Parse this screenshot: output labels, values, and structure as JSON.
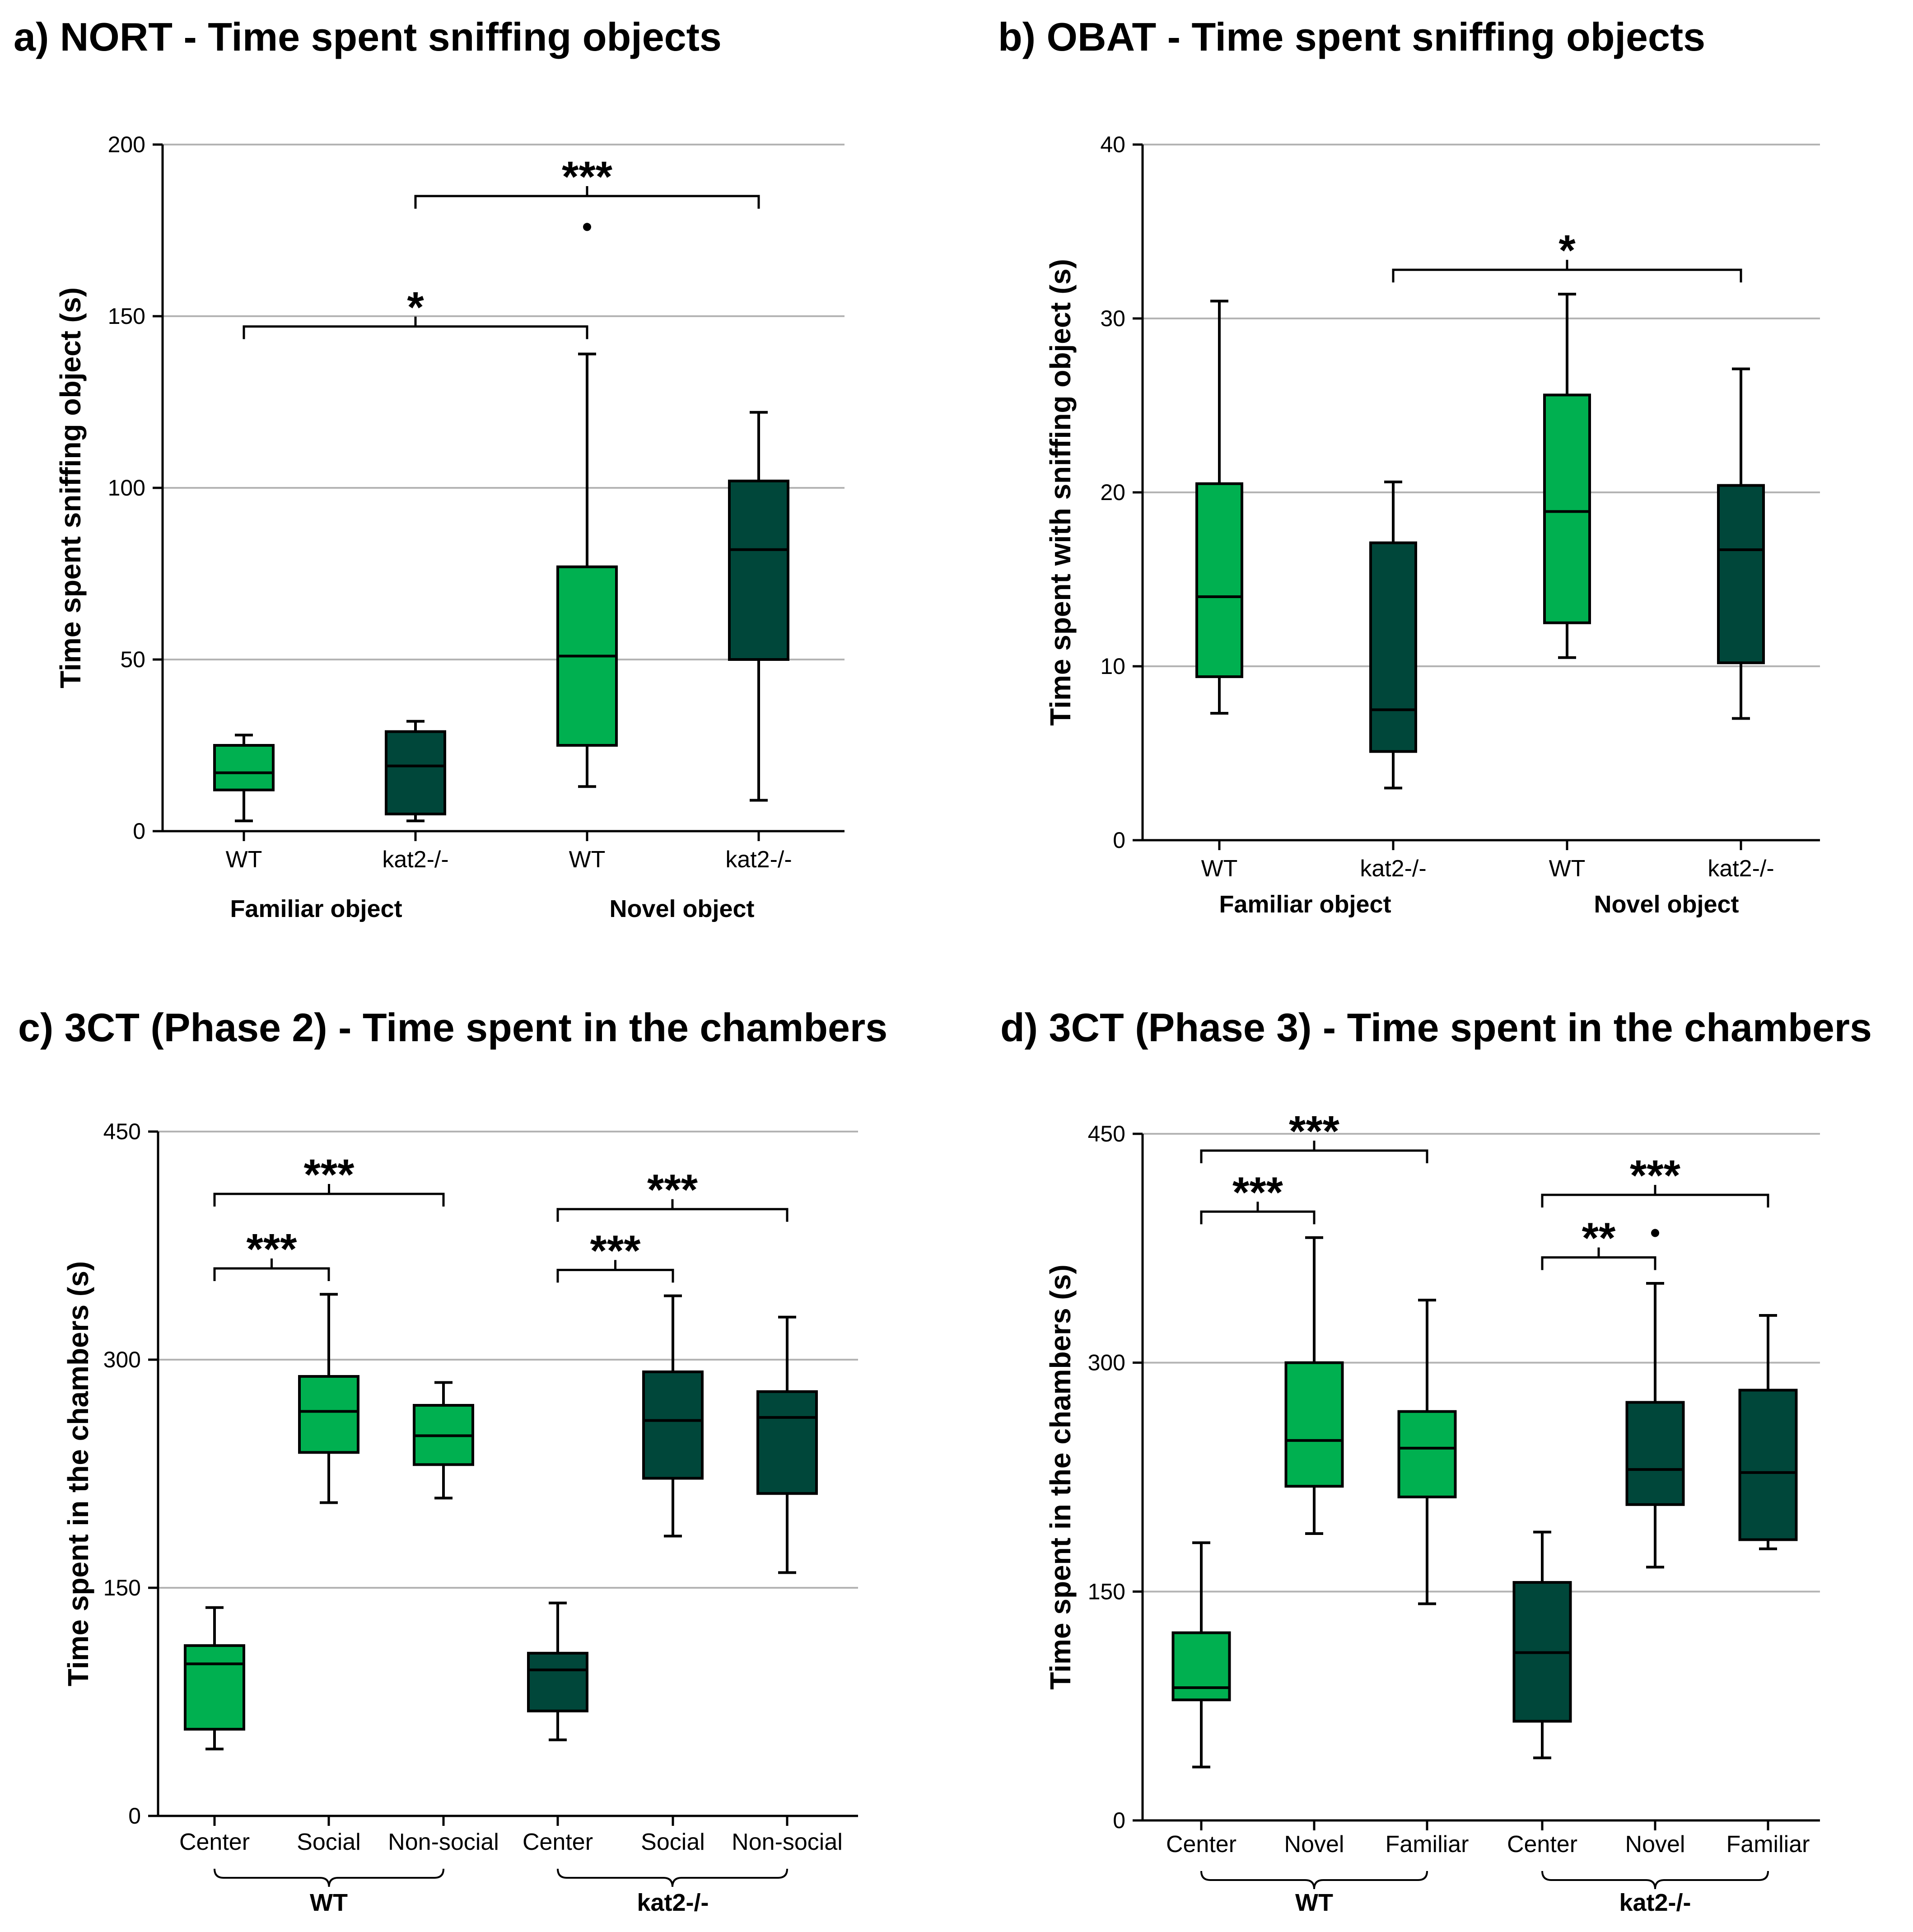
{
  "colors": {
    "wt": "#00b050",
    "kat2": "#00473a",
    "grid": "#b4b4b4",
    "ink": "#000000"
  },
  "chart_data": [
    {
      "id": "a",
      "type": "box",
      "title": "a) NORT - Time spent sniffing objects",
      "ylabel": "Time spent sniffing object (s)",
      "ylim": [
        0,
        200
      ],
      "yticks": [
        "0",
        "50",
        "100",
        "150",
        "200"
      ],
      "ytick_values": [
        0,
        50,
        100,
        150,
        200
      ],
      "grid": "horizontal",
      "categories": [
        "WT",
        "kat2-/-",
        "WT",
        "kat2-/-"
      ],
      "groups": [
        {
          "label": "Familiar object",
          "from": 0,
          "to": 1
        },
        {
          "label": "Novel object",
          "from": 2,
          "to": 3
        }
      ],
      "boxes": [
        {
          "series": "wt",
          "min": 3,
          "q1": 12,
          "median": 17,
          "q3": 25,
          "max": 28,
          "outliers": []
        },
        {
          "series": "kat2",
          "min": 3,
          "q1": 5,
          "median": 19,
          "q3": 29,
          "max": 32,
          "outliers": []
        },
        {
          "series": "wt",
          "min": 13,
          "q1": 25,
          "median": 51,
          "q3": 77,
          "max": 139,
          "outliers": [
            176
          ]
        },
        {
          "series": "kat2",
          "min": 9,
          "q1": 50,
          "median": 82,
          "q3": 102,
          "max": 122,
          "outliers": []
        }
      ],
      "significance": [
        {
          "from": 0,
          "to": 2,
          "y": 147,
          "label": "*"
        },
        {
          "from": 1,
          "to": 3,
          "y": 185,
          "label": "***"
        }
      ]
    },
    {
      "id": "b",
      "type": "box",
      "title": "b) OBAT - Time spent sniffing objects",
      "ylabel": "Time spent with sniffing object (s)",
      "ylim": [
        0,
        40
      ],
      "yticks": [
        "0",
        "10",
        "20",
        "30",
        "40"
      ],
      "ytick_values": [
        0,
        10,
        20,
        30,
        40
      ],
      "grid": "horizontal",
      "categories": [
        "WT",
        "kat2-/-",
        "WT",
        "kat2-/-"
      ],
      "groups": [
        {
          "label": "Familiar object",
          "from": 0,
          "to": 1
        },
        {
          "label": "Novel object",
          "from": 2,
          "to": 3
        }
      ],
      "boxes": [
        {
          "series": "wt",
          "min": 7.3,
          "q1": 9.4,
          "median": 14,
          "q3": 20.5,
          "max": 31,
          "outliers": []
        },
        {
          "series": "kat2",
          "min": 3,
          "q1": 5.1,
          "median": 7.5,
          "q3": 17.1,
          "max": 20.6,
          "outliers": []
        },
        {
          "series": "wt",
          "min": 10.5,
          "q1": 12.5,
          "median": 18.9,
          "q3": 25.6,
          "max": 31.4,
          "outliers": []
        },
        {
          "series": "kat2",
          "min": 7,
          "q1": 10.2,
          "median": 16.7,
          "q3": 20.4,
          "max": 27.1,
          "outliers": []
        }
      ],
      "significance": [
        {
          "from": 1,
          "to": 3,
          "y": 32.8,
          "label": "*"
        }
      ]
    },
    {
      "id": "c",
      "type": "box",
      "title": "c) 3CT (Phase 2) - Time spent in the chambers",
      "ylabel": "Time spent in the chambers (s)",
      "ylim": [
        0,
        450
      ],
      "yticks": [
        "0",
        "150",
        "300",
        "450"
      ],
      "ytick_values": [
        0,
        150,
        300,
        450
      ],
      "grid": "horizontal",
      "categories": [
        "Center",
        "Social",
        "Non-social",
        "Center",
        "Social",
        "Non-social"
      ],
      "groups": [
        {
          "label": "WT",
          "from": 0,
          "to": 2
        },
        {
          "label": "kat2-/-",
          "from": 3,
          "to": 5
        }
      ],
      "boxes": [
        {
          "series": "wt",
          "min": 44,
          "q1": 57,
          "median": 100,
          "q3": 112,
          "max": 137,
          "outliers": []
        },
        {
          "series": "wt",
          "min": 206,
          "q1": 239,
          "median": 266,
          "q3": 289,
          "max": 343,
          "outliers": []
        },
        {
          "series": "wt",
          "min": 209,
          "q1": 231,
          "median": 250,
          "q3": 270,
          "max": 285,
          "outliers": []
        },
        {
          "series": "kat2",
          "min": 50,
          "q1": 69,
          "median": 96,
          "q3": 107,
          "max": 140,
          "outliers": []
        },
        {
          "series": "kat2",
          "min": 184,
          "q1": 222,
          "median": 260,
          "q3": 292,
          "max": 342,
          "outliers": []
        },
        {
          "series": "kat2",
          "min": 160,
          "q1": 212,
          "median": 262,
          "q3": 279,
          "max": 328,
          "outliers": []
        }
      ],
      "significance": [
        {
          "from": 0,
          "to": 1,
          "y": 360,
          "label": "***"
        },
        {
          "from": 0,
          "to": 2,
          "y": 409,
          "label": "***"
        },
        {
          "from": 3,
          "to": 4,
          "y": 359,
          "label": "***"
        },
        {
          "from": 3,
          "to": 5,
          "y": 399,
          "label": "***"
        }
      ]
    },
    {
      "id": "d",
      "type": "box",
      "title": "d) 3CT (Phase 3) - Time spent in the chambers",
      "ylabel": "Time spent in the chambers (s)",
      "ylim": [
        0,
        450
      ],
      "yticks": [
        "0",
        "150",
        "300",
        "450"
      ],
      "ytick_values": [
        0,
        150,
        300,
        450
      ],
      "grid": "horizontal",
      "categories": [
        "Center",
        "Novel",
        "Familiar",
        "Center",
        "Novel",
        "Familiar"
      ],
      "groups": [
        {
          "label": "WT",
          "from": 0,
          "to": 2
        },
        {
          "label": "kat2-/-",
          "from": 3,
          "to": 5
        }
      ],
      "boxes": [
        {
          "series": "wt",
          "min": 35,
          "q1": 79,
          "median": 87,
          "q3": 123,
          "max": 182,
          "outliers": []
        },
        {
          "series": "wt",
          "min": 188,
          "q1": 219,
          "median": 249,
          "q3": 300,
          "max": 382,
          "outliers": []
        },
        {
          "series": "wt",
          "min": 142,
          "q1": 212,
          "median": 244,
          "q3": 268,
          "max": 341,
          "outliers": []
        },
        {
          "series": "kat2",
          "min": 41,
          "q1": 65,
          "median": 110,
          "q3": 156,
          "max": 189,
          "outliers": []
        },
        {
          "series": "kat2",
          "min": 166,
          "q1": 207,
          "median": 230,
          "q3": 274,
          "max": 352,
          "outliers": [
            385
          ]
        },
        {
          "series": "kat2",
          "min": 178,
          "q1": 184,
          "median": 228,
          "q3": 282,
          "max": 331,
          "outliers": []
        }
      ],
      "significance": [
        {
          "from": 0,
          "to": 1,
          "y": 399,
          "label": "***"
        },
        {
          "from": 0,
          "to": 2,
          "y": 439,
          "label": "***"
        },
        {
          "from": 3,
          "to": 4,
          "y": 369,
          "label": "**"
        },
        {
          "from": 3,
          "to": 5,
          "y": 410,
          "label": "***"
        }
      ]
    }
  ]
}
